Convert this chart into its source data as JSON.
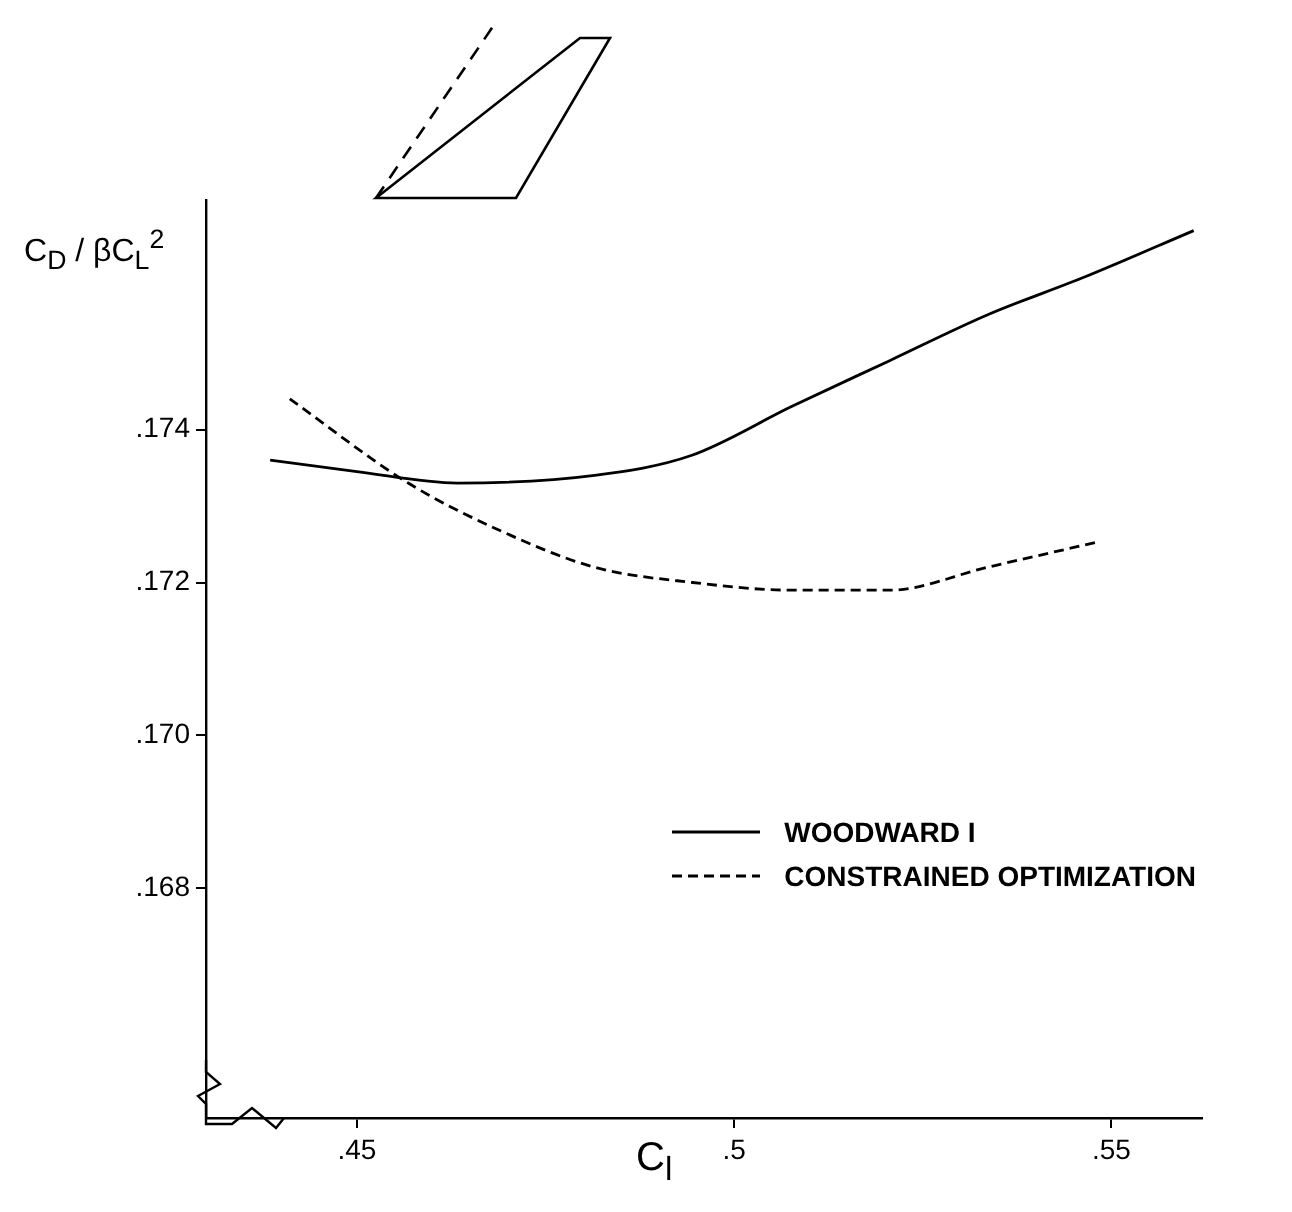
{
  "chart_data": {
    "type": "line",
    "xlabel": "C$_{l}$",
    "ylabel": "C$_{D}$ / βC$_{L}$$^{2}$",
    "xlim": [
      0.43,
      0.562
    ],
    "xticks": [
      {
        "value": 0.45,
        "label": ".45"
      },
      {
        "value": 0.5,
        "label": ".5"
      },
      {
        "value": 0.55,
        "label": ".55"
      }
    ],
    "ylim": [
      0.165,
      0.177
    ],
    "yticks": [
      {
        "value": 0.168,
        "label": ".168"
      },
      {
        "value": 0.17,
        "label": ".170"
      },
      {
        "value": 0.172,
        "label": ".172"
      },
      {
        "value": 0.174,
        "label": ".174"
      }
    ],
    "legend": "right",
    "marker": "none",
    "series": [
      {
        "name": "WOODWARD I",
        "color": "#000000",
        "line_style": "solid",
        "x": [
          0.4385,
          0.45,
          0.4633,
          0.4815,
          0.4943,
          0.5076,
          0.5206,
          0.5336,
          0.5466,
          0.5609
        ],
        "values": [
          0.1736,
          0.17345,
          0.1733,
          0.1734,
          0.17366,
          0.1743,
          0.1749,
          0.1755,
          0.176,
          0.1766
        ]
      },
      {
        "name": "CONSTRAINED OPTIMIZATION",
        "color": "#000000",
        "line_style": "dashed",
        "x": [
          0.4411,
          0.4568,
          0.4685,
          0.4815,
          0.4945,
          0.5076,
          0.5206,
          0.5336,
          0.5482
        ],
        "values": [
          0.1744,
          0.1733,
          0.1727,
          0.1722,
          0.172,
          0.1719,
          0.1719,
          0.1722,
          0.17253
        ]
      }
    ]
  }
}
